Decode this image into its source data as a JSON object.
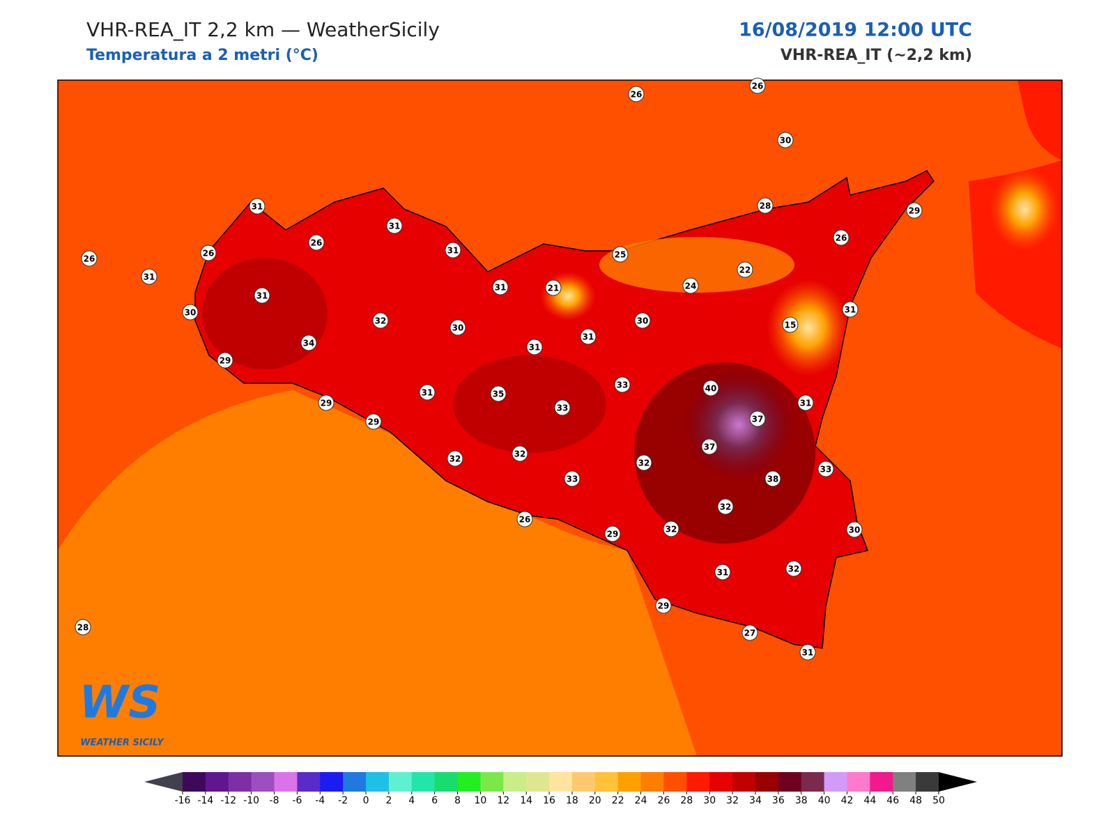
{
  "header": {
    "title": "VHR-REA_IT 2,2 km — WeatherSicily",
    "subtitle": "Temperatura a 2 metri (°C)",
    "datetime": "16/08/2019 12:00 UTC",
    "model": "VHR-REA_IT (~2,2 km)"
  },
  "stations": [
    26,
    26,
    30,
    31,
    31,
    26,
    26,
    26,
    31,
    31,
    25,
    28,
    29,
    26,
    22,
    24,
    21,
    31,
    31,
    30,
    32,
    30,
    30,
    15,
    31,
    34,
    31,
    31,
    29,
    33,
    40,
    31,
    35,
    33,
    31,
    37,
    29,
    29,
    37,
    32,
    32,
    32,
    33,
    33,
    38,
    32,
    26,
    29,
    32,
    30,
    32,
    31,
    29,
    27,
    31,
    28
  ],
  "logo": {
    "mark": "WS",
    "text": "WEATHER SICILY"
  },
  "colorbar": {
    "ticks": [
      -16,
      -14,
      -12,
      -10,
      -8,
      -6,
      -4,
      -2,
      0,
      2,
      4,
      6,
      8,
      10,
      12,
      14,
      16,
      18,
      20,
      22,
      24,
      26,
      28,
      30,
      32,
      34,
      36,
      38,
      40,
      42,
      44,
      46,
      48,
      50
    ],
    "colors": [
      "#3d0a5a",
      "#5e1691",
      "#7d2fa6",
      "#9c4fc0",
      "#d874e8",
      "#5a2bc8",
      "#1c1cf0",
      "#1f7ae0",
      "#1fc0e6",
      "#5ff0d0",
      "#22e6a8",
      "#18dc6e",
      "#22ee22",
      "#7ae84a",
      "#c8ee8a",
      "#e0e690",
      "#ffe4a0",
      "#ffc870",
      "#ffc23a",
      "#ffa000",
      "#ff7e00",
      "#ff5000",
      "#ff1a00",
      "#e60000",
      "#c00000",
      "#990000",
      "#700020",
      "#7a2a4e",
      "#d19cf7",
      "#ff7acc",
      "#f01a8c",
      "#808080",
      "#3a3a3a"
    ],
    "under_color": "#404050",
    "over_color": "#000000"
  }
}
